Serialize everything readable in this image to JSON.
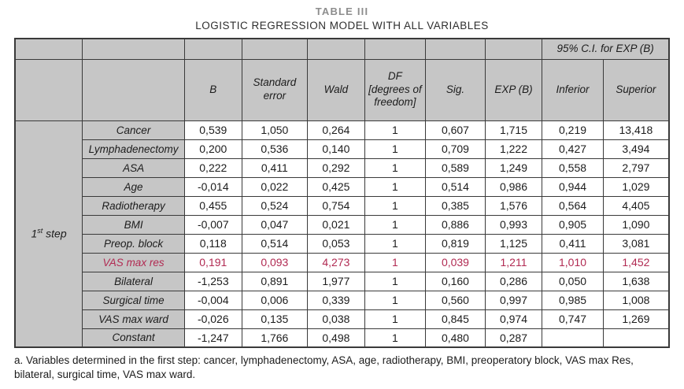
{
  "title": "TABLE III",
  "subtitle": "LOGISTIC REGRESSION MODEL WITH ALL VARIABLES",
  "colors": {
    "highlight": "#b12a52",
    "header_bg": "#c6c6c6",
    "border": "#3a3a3a",
    "title": "#8d8d8d"
  },
  "table": {
    "ci_header": "95% C.I. for EXP (B)",
    "step": {
      "num": "1",
      "sup": "st",
      "rest": " step"
    },
    "columns": [
      "B",
      "Standard error",
      "Wald",
      "DF [degrees of freedom]",
      "Sig.",
      "EXP (B)",
      "Inferior",
      "Superior"
    ],
    "rows": [
      {
        "label": "Cancer",
        "highlight": false,
        "values": [
          "0,539",
          "1,050",
          "0,264",
          "1",
          "0,607",
          "1,715",
          "0,219",
          "13,418"
        ]
      },
      {
        "label": "Lymphadenectomy",
        "highlight": false,
        "values": [
          "0,200",
          "0,536",
          "0,140",
          "1",
          "0,709",
          "1,222",
          "0,427",
          "3,494"
        ]
      },
      {
        "label": "ASA",
        "highlight": false,
        "values": [
          "0,222",
          "0,411",
          "0,292",
          "1",
          "0,589",
          "1,249",
          "0,558",
          "2,797"
        ]
      },
      {
        "label": "Age",
        "highlight": false,
        "values": [
          "-0,014",
          "0,022",
          "0,425",
          "1",
          "0,514",
          "0,986",
          "0,944",
          "1,029"
        ]
      },
      {
        "label": "Radiotherapy",
        "highlight": false,
        "values": [
          "0,455",
          "0,524",
          "0,754",
          "1",
          "0,385",
          "1,576",
          "0,564",
          "4,405"
        ]
      },
      {
        "label": "BMI",
        "highlight": false,
        "values": [
          "-0,007",
          "0,047",
          "0,021",
          "1",
          "0,886",
          "0,993",
          "0,905",
          "1,090"
        ]
      },
      {
        "label": "Preop. block",
        "highlight": false,
        "values": [
          "0,118",
          "0,514",
          "0,053",
          "1",
          "0,819",
          "1,125",
          "0,411",
          "3,081"
        ]
      },
      {
        "label": "VAS max res",
        "highlight": true,
        "values": [
          "0,191",
          "0,093",
          "4,273",
          "1",
          "0,039",
          "1,211",
          "1,010",
          "1,452"
        ]
      },
      {
        "label": "Bilateral",
        "highlight": false,
        "values": [
          "-1,253",
          "0,891",
          "1,977",
          "1",
          "0,160",
          "0,286",
          "0,050",
          "1,638"
        ]
      },
      {
        "label": "Surgical time",
        "highlight": false,
        "values": [
          "-0,004",
          "0,006",
          "0,339",
          "1",
          "0,560",
          "0,997",
          "0,985",
          "1,008"
        ]
      },
      {
        "label": "VAS max ward",
        "highlight": false,
        "values": [
          "-0,026",
          "0,135",
          "0,038",
          "1",
          "0,845",
          "0,974",
          "0,747",
          "1,269"
        ]
      },
      {
        "label": "Constant",
        "highlight": false,
        "values": [
          "-1,247",
          "1,766",
          "0,498",
          "1",
          "0,480",
          "0,287",
          "",
          ""
        ]
      }
    ]
  },
  "footnote": "a. Variables determined in the first step: cancer, lymphadenectomy, ASA, age, radiotherapy, BMI, preoperatory block, VAS max Res, bilateral, surgical time, VAS max ward."
}
